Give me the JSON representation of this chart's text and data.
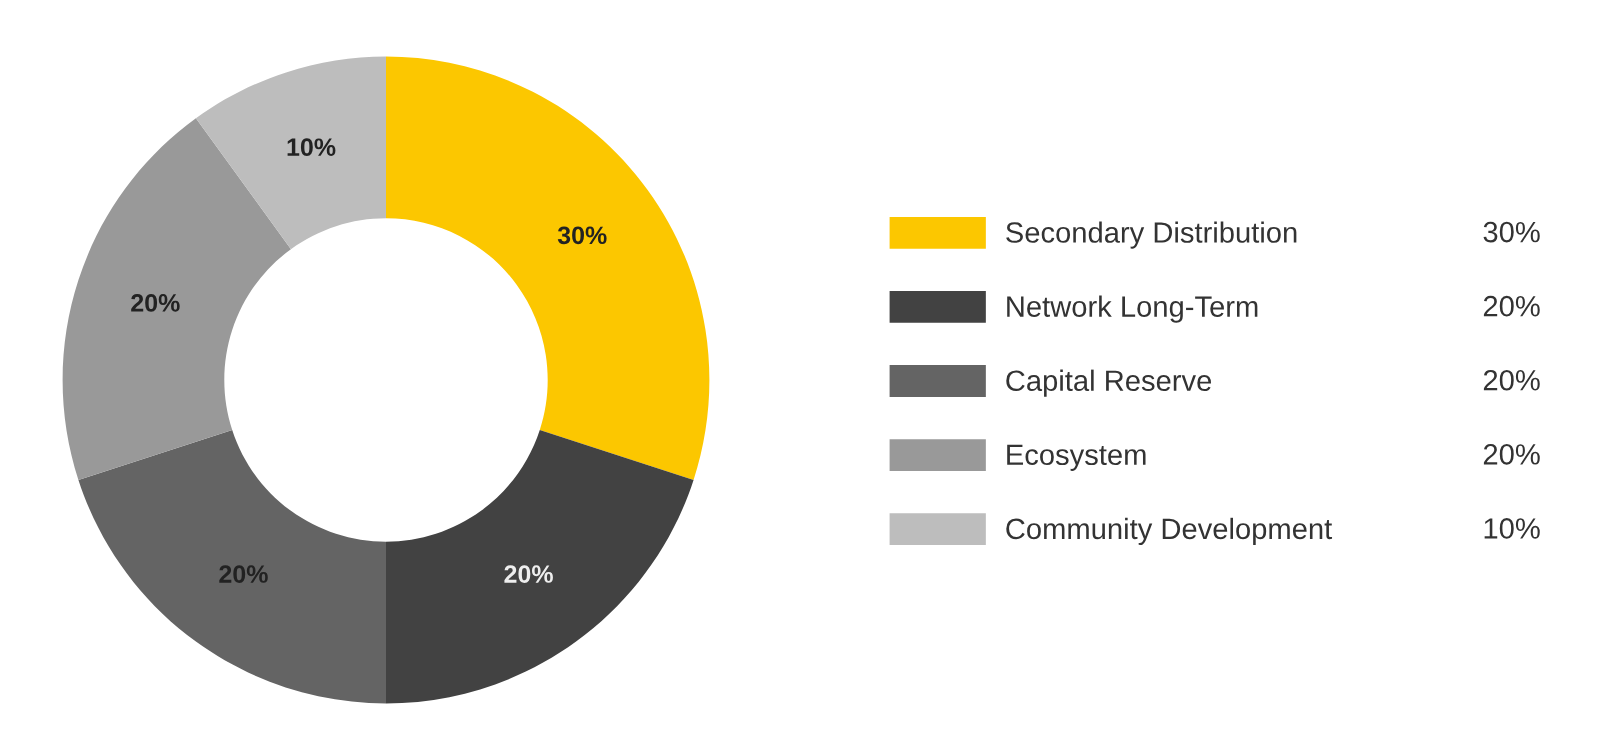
{
  "chart_data": {
    "type": "donut",
    "categories": [
      "Secondary Distribution",
      "Network Long-Term",
      "Capital Reserve",
      "Ecosystem",
      "Community Development"
    ],
    "values": [
      30,
      20,
      20,
      20,
      10
    ],
    "value_labels": [
      "30%",
      "20%",
      "20%",
      "20%",
      "10%"
    ],
    "colors": [
      "#fcc700",
      "#424242",
      "#646464",
      "#999999",
      "#bdbdbd"
    ],
    "legend": "right"
  }
}
